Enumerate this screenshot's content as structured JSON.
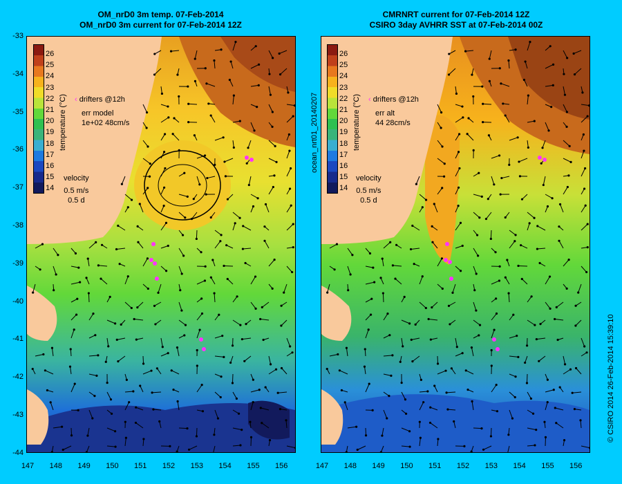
{
  "titles": {
    "left": [
      "OM_nrD0 3m temp. 07-Feb-2014",
      "OM_nrD0 3m current for 07-Feb-2014 12Z"
    ],
    "right": [
      "CMRNRT current for 07-Feb-2014 12Z",
      "CSIRO 3day AVHRR SST at 07-Feb-2014 00Z"
    ]
  },
  "axes": {
    "x_ticks": [
      "147",
      "148",
      "149",
      "150",
      "151",
      "152",
      "153",
      "154",
      "155",
      "156"
    ],
    "y_ticks": [
      "-33",
      "-34",
      "-35",
      "-36",
      "-37",
      "-38",
      "-39",
      "-40",
      "-41",
      "-42",
      "-43",
      "-44"
    ]
  },
  "colorbar": {
    "label": "temperature (°C)",
    "ticks": [
      "26",
      "25",
      "24",
      "23",
      "22",
      "21",
      "20",
      "19",
      "18",
      "17",
      "16",
      "15",
      "14"
    ],
    "colors": [
      "#8b1a10",
      "#c0401a",
      "#e8781e",
      "#f7b21c",
      "#f0dc28",
      "#b9e43a",
      "#62d83a",
      "#2fc050",
      "#3ab47a",
      "#3aaed0",
      "#1e7ae0",
      "#1c48c0",
      "#182a8c",
      "#121a5c"
    ]
  },
  "left_legend": {
    "drifters": "drifters @12h",
    "err_label": "err model",
    "err_value": "1e+02 48cm/s",
    "velocity_label": "velocity",
    "velocity_scale": "0.5 m/s",
    "velocity_time": "0.5 d"
  },
  "right_legend": {
    "drifters": "drifters @12h",
    "err_label": "err alt",
    "err_value": "44 28cm/s",
    "velocity_label": "velocity",
    "velocity_scale": "0.5 m/s",
    "velocity_time": "0.5 d"
  },
  "side_label": "ocean_nrt01_20140207",
  "credit": "© CSIRO 2014   26-Feb-2014 15:39:10",
  "colors": {
    "background": "#00ccff",
    "land": "#f9c99c",
    "drifter": "#ff33ff"
  }
}
